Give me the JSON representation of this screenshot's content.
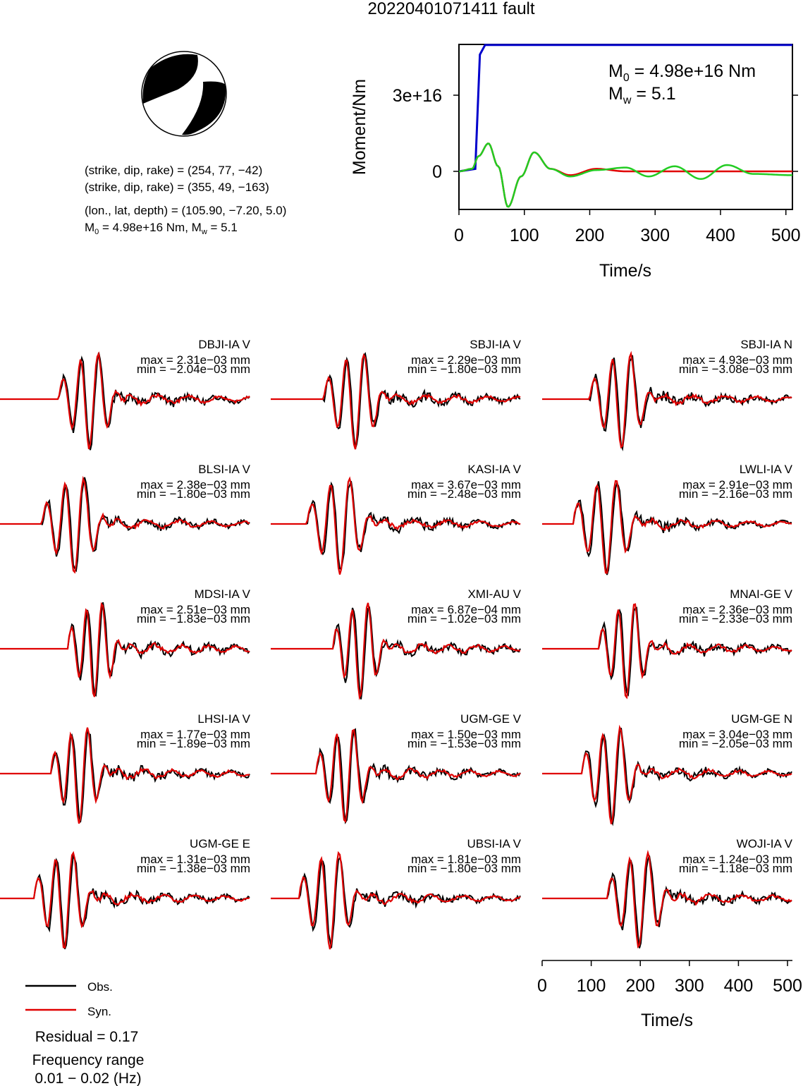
{
  "title": "20220401071411 fault",
  "mechanism": {
    "plane1": "(strike, dip, rake) = (254, 77, −42)",
    "plane2": "(strike, dip, rake) = (355, 49, −163)",
    "location": "(lon., lat, depth) = (105.90, −7.20, 5.0)",
    "moment_line_a": "M",
    "moment_line_sub": "0",
    "moment_line_b": " = 4.98e+16 Nm, M",
    "moment_line_sub2": "w",
    "moment_line_c": " = 5.1"
  },
  "moment_plot": {
    "ylabel": "Moment/Nm",
    "xlabel": "Time/s",
    "m0_prefix": "M",
    "m0_sub": "0",
    "m0_value": " = 4.98e+16 Nm",
    "mw_prefix": "M",
    "mw_sub": "w",
    "mw_value": " = 5.1",
    "ytick_labels": [
      "0",
      "3e+16"
    ],
    "xtick_labels": [
      "0",
      "100",
      "200",
      "300",
      "400",
      "500"
    ]
  },
  "waveform_axis": {
    "xlabel": "Time/s",
    "xtick_labels": [
      "0",
      "100",
      "200",
      "300",
      "400",
      "500"
    ]
  },
  "legend": {
    "obs_label": "Obs.",
    "syn_label": "Syn.",
    "obs_color": "#000000",
    "syn_color": "#e00000"
  },
  "residual": "Residual = 0.17",
  "freq_label": "Frequency range",
  "freq_value": "0.01 − 0.02 (Hz)",
  "colors": {
    "moment_rate": "#0000cc",
    "moment_obs_like": "#e00000",
    "moment_green": "#22cc22"
  },
  "chart_data": [
    {
      "type": "line",
      "title": "",
      "xlabel": "Time/s",
      "ylabel": "Moment/Nm",
      "xlim": [
        0,
        510
      ],
      "ylim": [
        -1.5e+16,
        5e+16
      ],
      "series": [
        {
          "x": [
            0,
            25,
            32,
            40,
            510
          ],
          "y": [
            0,
            1000000000000000.0,
            4.6e+16,
            4.98e+16,
            4.98e+16
          ]
        },
        {
          "x": [
            0,
            20,
            30,
            45,
            60,
            75,
            95,
            115,
            140,
            170,
            210,
            255,
            290,
            330,
            370,
            410,
            450,
            510
          ],
          "y": [
            0,
            1000000000000000.0,
            6000000000000000.0,
            1.1e+16,
            2000000000000000.0,
            -1.4e+16,
            -2000000000000000.0,
            7500000000000000.0,
            1000000000000000.0,
            -2000000000000000.0,
            500000000000000.0,
            1500000000000000.0,
            -2000000000000000.0,
            2000000000000000.0,
            -3000000000000000.0,
            2500000000000000.0,
            -1000000000000000.0,
            -1500000000000000.0
          ]
        },
        {
          "x": [
            0,
            20,
            30,
            45,
            60,
            75,
            95,
            115,
            140,
            170,
            210,
            255,
            290,
            330,
            370,
            410,
            450,
            510
          ],
          "y": [
            0,
            1000000000000000.0,
            6000000000000000.0,
            1.1e+16,
            2000000000000000.0,
            -1.4e+16,
            -2000000000000000.0,
            7500000000000000.0,
            1000000000000000.0,
            -1500000000000000.0,
            1000000000000000.0,
            0.0,
            0.0,
            0.0,
            0.0,
            0.0,
            0.0,
            0.0
          ]
        }
      ]
    },
    {
      "type": "line",
      "title": "",
      "xlabel": "Time/s",
      "ylabel": "",
      "xlim": [
        0,
        510
      ],
      "panels": [
        {
          "station": "DBJI-IA V",
          "max": "max = 2.31e−03 mm",
          "min": "min = −2.04e−03 mm"
        },
        {
          "station": "SBJI-IA V",
          "max": "max = 2.29e−03 mm",
          "min": "min = −1.80e−03 mm"
        },
        {
          "station": "SBJI-IA N",
          "max": "max = 4.93e−03 mm",
          "min": "min = −3.08e−03 mm"
        },
        {
          "station": "BLSI-IA V",
          "max": "max = 2.38e−03 mm",
          "min": "min = −1.80e−03 mm"
        },
        {
          "station": "KASI-IA V",
          "max": "max = 3.67e−03 mm",
          "min": "min = −2.48e−03 mm"
        },
        {
          "station": "LWLI-IA V",
          "max": "max = 2.91e−03 mm",
          "min": "min = −2.16e−03 mm"
        },
        {
          "station": "MDSI-IA V",
          "max": "max = 2.51e−03 mm",
          "min": "min = −1.83e−03 mm"
        },
        {
          "station": "XMI-AU V",
          "max": "max = 6.87e−04 mm",
          "min": "min = −1.02e−03 mm"
        },
        {
          "station": "MNAI-GE V",
          "max": "max = 2.36e−03 mm",
          "min": "min = −2.33e−03 mm"
        },
        {
          "station": "LHSI-IA V",
          "max": "max = 1.77e−03 mm",
          "min": "min = −1.89e−03 mm"
        },
        {
          "station": "UGM-GE V",
          "max": "max = 1.50e−03 mm",
          "min": "min = −1.53e−03 mm"
        },
        {
          "station": "UGM-GE N",
          "max": "max = 3.04e−03 mm",
          "min": "min = −2.05e−03 mm"
        },
        {
          "station": "UGM-GE E",
          "max": "max = 1.31e−03 mm",
          "min": "min = −1.38e−03 mm"
        },
        {
          "station": "UBSI-IA V",
          "max": "max = 1.81e−03 mm",
          "min": "min = −1.80e−03 mm"
        },
        {
          "station": "WOJI-IA V",
          "max": "max = 1.24e−03 mm",
          "min": "min = −1.18e−03 mm"
        }
      ]
    }
  ]
}
